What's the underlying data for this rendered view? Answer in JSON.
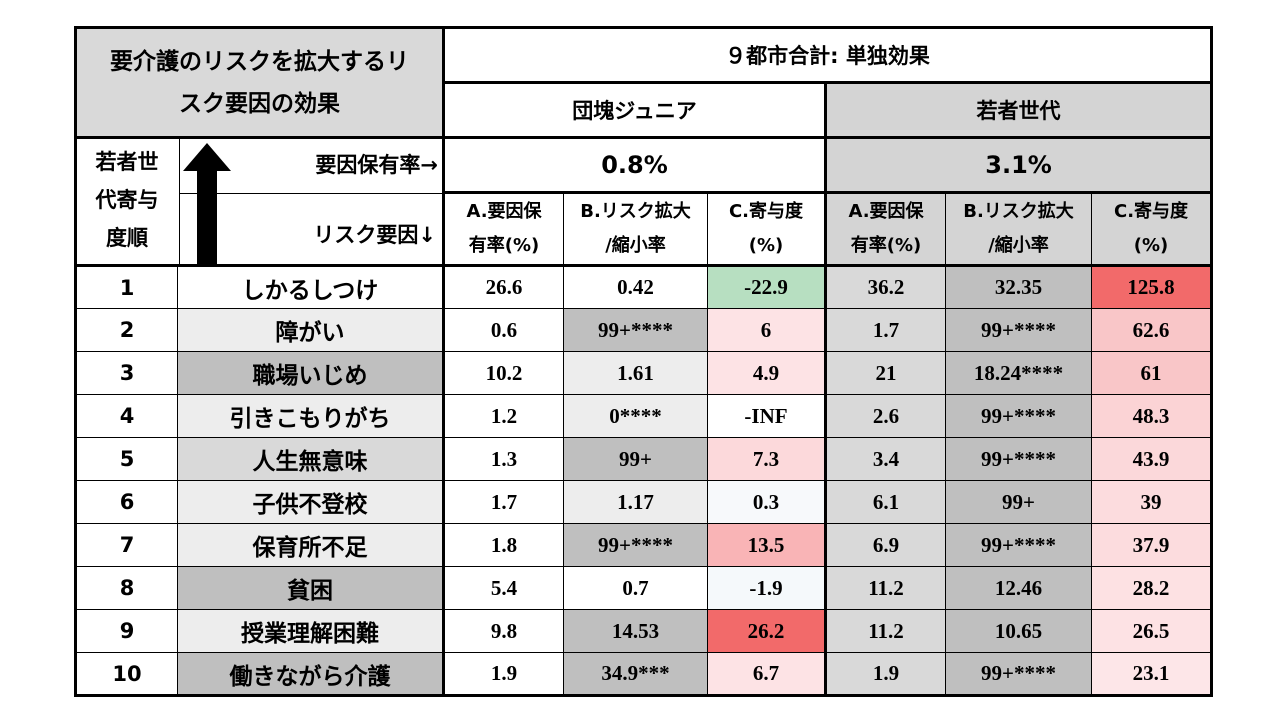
{
  "title_line1": "要介護のリスクを拡大するリ",
  "title_line2": "スク要因の効果",
  "top_header": "９都市合計: 単独効果",
  "groups": [
    {
      "label": "団塊ジュニア",
      "prevalence": "0.8%"
    },
    {
      "label": "若者世代",
      "prevalence": "3.1%"
    }
  ],
  "row_header_line1": "若者世",
  "row_header_line2": "代寄与",
  "row_header_line3": "度順",
  "prevalence_label": "要因保有率→",
  "factor_label": "リスク要因↓",
  "arrow_icon": "up-arrow-icon",
  "col_a_line1": "A.要因保",
  "col_a_line2": "有率(%)",
  "col_b_line1": "B.リスク拡大",
  "col_b_line2": "/縮小率",
  "col_c_line1": "C.寄与度",
  "col_c_line2": "(%)",
  "colors": {
    "header_gray": "#d9d9d9",
    "cell_gray": "#bfbfbf",
    "light_gray": "#ededed",
    "green": "#b7dfc1",
    "red_strong": "#f26a6a",
    "pink_light": "#fde3e5"
  },
  "rows": [
    {
      "rank": "1",
      "factor": "しかるしつけ",
      "fbg": "#ffffff",
      "j": [
        "26.6",
        "0.42",
        "-22.9"
      ],
      "jbg": [
        "#ffffff",
        "#ffffff",
        "#b7dfc1"
      ],
      "y": [
        "36.2",
        "32.35",
        "125.8"
      ],
      "ybg": [
        "#d9d9d9",
        "#bfbfbf",
        "#f26a6a"
      ]
    },
    {
      "rank": "2",
      "factor": "障がい",
      "fbg": "#ededed",
      "j": [
        "0.6",
        "99+****",
        "6"
      ],
      "jbg": [
        "#ffffff",
        "#bfbfbf",
        "#fde3e5"
      ],
      "y": [
        "1.7",
        "99+****",
        "62.6"
      ],
      "ybg": [
        "#d9d9d9",
        "#bfbfbf",
        "#f9c6c8"
      ]
    },
    {
      "rank": "3",
      "factor": "職場いじめ",
      "fbg": "#bfbfbf",
      "j": [
        "10.2",
        "1.61",
        "4.9"
      ],
      "jbg": [
        "#ffffff",
        "#ededed",
        "#fde3e5"
      ],
      "y": [
        "21",
        "18.24****",
        "61"
      ],
      "ybg": [
        "#d9d9d9",
        "#bfbfbf",
        "#f9c6c8"
      ]
    },
    {
      "rank": "4",
      "factor": "引きこもりがち",
      "fbg": "#ededed",
      "j": [
        "1.2",
        "0****",
        "-INF"
      ],
      "jbg": [
        "#ffffff",
        "#ededed",
        "#ffffff"
      ],
      "y": [
        "2.6",
        "99+****",
        "48.3"
      ],
      "ybg": [
        "#d9d9d9",
        "#bfbfbf",
        "#fbd3d5"
      ]
    },
    {
      "rank": "5",
      "factor": "人生無意味",
      "fbg": "#d9d9d9",
      "j": [
        "1.3",
        "99+",
        "7.3"
      ],
      "jbg": [
        "#ffffff",
        "#bfbfbf",
        "#fcd9db"
      ],
      "y": [
        "3.4",
        "99+****",
        "43.9"
      ],
      "ybg": [
        "#d9d9d9",
        "#bfbfbf",
        "#fbd8da"
      ]
    },
    {
      "rank": "6",
      "factor": "子供不登校",
      "fbg": "#ededed",
      "j": [
        "1.7",
        "1.17",
        "0.3"
      ],
      "jbg": [
        "#ffffff",
        "#ededed",
        "#f7f9fb"
      ],
      "y": [
        "6.1",
        "99+",
        "39"
      ],
      "ybg": [
        "#d9d9d9",
        "#bfbfbf",
        "#fcdcde"
      ]
    },
    {
      "rank": "7",
      "factor": "保育所不足",
      "fbg": "#ededed",
      "j": [
        "1.8",
        "99+****",
        "13.5"
      ],
      "jbg": [
        "#ffffff",
        "#bfbfbf",
        "#f9b4b6"
      ],
      "y": [
        "6.9",
        "99+****",
        "37.9"
      ],
      "ybg": [
        "#d9d9d9",
        "#bfbfbf",
        "#fcdcde"
      ]
    },
    {
      "rank": "8",
      "factor": "貧困",
      "fbg": "#bfbfbf",
      "j": [
        "5.4",
        "0.7",
        "-1.9"
      ],
      "jbg": [
        "#ffffff",
        "#ffffff",
        "#f5f9fb"
      ],
      "y": [
        "11.2",
        "12.46",
        "28.2"
      ],
      "ybg": [
        "#d9d9d9",
        "#bfbfbf",
        "#fde1e3"
      ]
    },
    {
      "rank": "9",
      "factor": "授業理解困難",
      "fbg": "#ededed",
      "j": [
        "9.8",
        "14.53",
        "26.2"
      ],
      "jbg": [
        "#ffffff",
        "#bfbfbf",
        "#f26a6a"
      ],
      "y": [
        "11.2",
        "10.65",
        "26.5"
      ],
      "ybg": [
        "#d9d9d9",
        "#bfbfbf",
        "#fde2e4"
      ]
    },
    {
      "rank": "10",
      "factor": "働きながら介護",
      "fbg": "#bfbfbf",
      "j": [
        "1.9",
        "34.9***",
        "6.7"
      ],
      "jbg": [
        "#ffffff",
        "#bfbfbf",
        "#fde3e5"
      ],
      "y": [
        "1.9",
        "99+****",
        "23.1"
      ],
      "ybg": [
        "#d9d9d9",
        "#bfbfbf",
        "#fde6e8"
      ]
    }
  ]
}
